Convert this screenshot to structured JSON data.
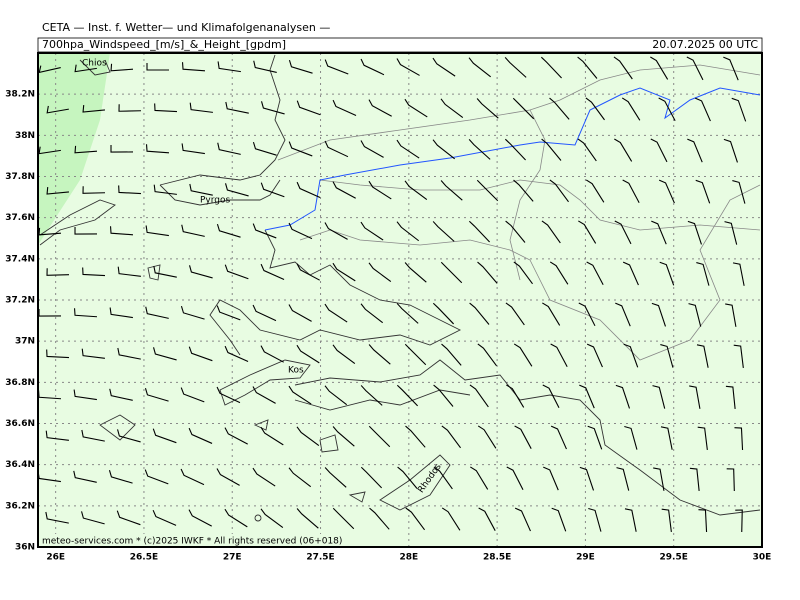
{
  "header": {
    "institute": "CETA — Inst. f. Wetter— und Klimafolgenanalysen —",
    "title": "700hpa_Windspeed_[m/s]_&_Height_[gpdm]",
    "date": "20.07.2025 00 UTC",
    "footer": "meteo-services.com * (c)2025 IWKF * All rights reserved (06+018)"
  },
  "map": {
    "xlim": [
      25.9,
      30
    ],
    "ylim": [
      36,
      38.4
    ],
    "xticks": [
      {
        "value": 26,
        "label": "26E"
      },
      {
        "value": 26.5,
        "label": "26.5E"
      },
      {
        "value": 27,
        "label": "27E"
      },
      {
        "value": 27.5,
        "label": "27.5E"
      },
      {
        "value": 28,
        "label": "28E"
      },
      {
        "value": 28.5,
        "label": "28.5E"
      },
      {
        "value": 29,
        "label": "29E"
      },
      {
        "value": 29.5,
        "label": "29.5E"
      },
      {
        "value": 30,
        "label": "30E"
      }
    ],
    "yticks": [
      {
        "value": 36,
        "label": "36N"
      },
      {
        "value": 36.2,
        "label": "36.2N"
      },
      {
        "value": 36.4,
        "label": "36.4N"
      },
      {
        "value": 36.6,
        "label": "36.6N"
      },
      {
        "value": 36.8,
        "label": "36.8N"
      },
      {
        "value": 37,
        "label": "37N"
      },
      {
        "value": 37.2,
        "label": "37.2N"
      },
      {
        "value": 37.4,
        "label": "37.4N"
      },
      {
        "value": 37.6,
        "label": "37.6N"
      },
      {
        "value": 37.8,
        "label": "37.8N"
      },
      {
        "value": 38,
        "label": "38N"
      },
      {
        "value": 38.2,
        "label": "38.2N"
      }
    ],
    "places": [
      {
        "name": "Chios"
      },
      {
        "name": "Pyrgos"
      },
      {
        "name": "Kos"
      },
      {
        "name": "Rhodos"
      }
    ]
  }
}
